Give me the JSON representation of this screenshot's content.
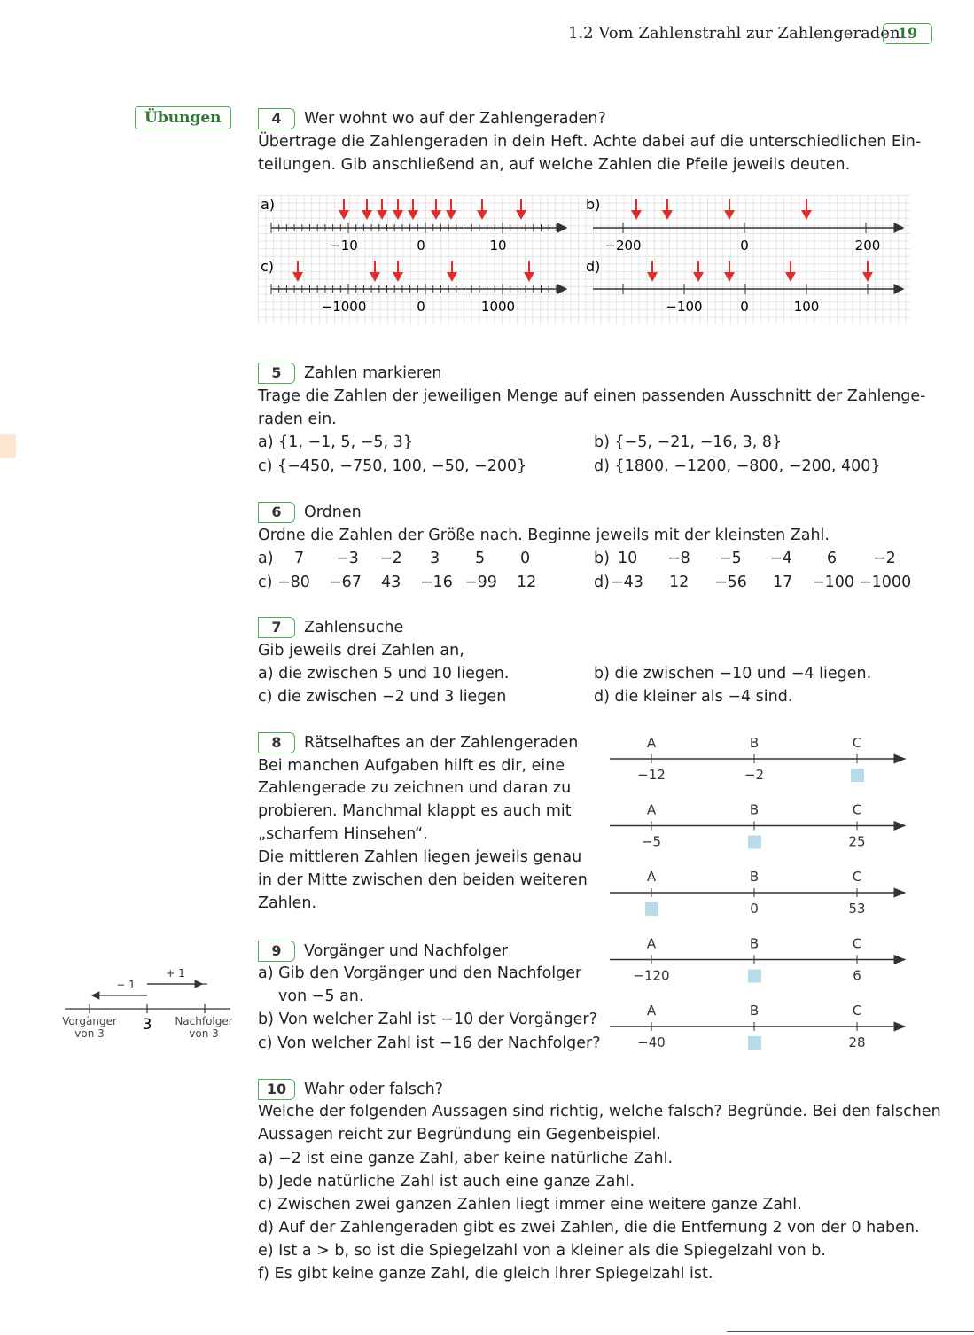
{
  "header": {
    "chapter": "1.2  Vom Zahlenstrahl zur Zahlengeraden",
    "page": "19"
  },
  "sidebar": {
    "label": "Übungen"
  },
  "ex4": {
    "num": "4",
    "title": "Wer wohnt wo auf der Zahlengeraden?",
    "lines": [
      "Übertrage die Zahlengeraden in dein Heft. Achte dabei auf die unterschiedlichen Ein-",
      "teilungen. Gib anschließend an, auf welche Zahlen die Pfeile jeweils deuten."
    ],
    "diagrams": {
      "a": {
        "label": "a)",
        "ticks": [
          "−10",
          "0",
          "10"
        ]
      },
      "b": {
        "label": "b)",
        "ticks": [
          "−200",
          "0",
          "200"
        ]
      },
      "c": {
        "label": "c)",
        "ticks": [
          "−1000",
          "0",
          "1000"
        ]
      },
      "d": {
        "label": "d)",
        "ticks": [
          "−100",
          "0",
          "100"
        ]
      }
    }
  },
  "ex5": {
    "num": "5",
    "title": "Zahlen markieren",
    "lines": [
      "Trage die Zahlen der jeweiligen Menge auf einen passenden Ausschnitt der Zahlenge-",
      "raden ein."
    ],
    "a": "a) {1, −1, 5, −5, 3}",
    "b": "b) {−5, −21, −16, 3, 8}",
    "c": "c) {−450, −750, 100, −50, −200}",
    "d": "d) {1800, −1200, −800, −200, 400}"
  },
  "ex6": {
    "num": "6",
    "title": "Ordnen",
    "intro": "Ordne die Zahlen der Größe nach. Beginne jeweils mit der kleinsten Zahl.",
    "a": {
      "label": "a)",
      "values": [
        "7",
        "−3",
        "−2",
        "3",
        "5",
        "0"
      ]
    },
    "b": {
      "label": "b)",
      "values": [
        "10",
        "−8",
        "−5",
        "−4",
        "6",
        "−2"
      ]
    },
    "c": {
      "label": "c)",
      "values": [
        "−80",
        "−67",
        "43",
        "−16",
        "−99",
        "12"
      ]
    },
    "d": {
      "label": "d)",
      "values": [
        "−43",
        "12",
        "−56",
        "17",
        "−100",
        "−1000"
      ]
    }
  },
  "ex7": {
    "num": "7",
    "title": "Zahlensuche",
    "intro": "Gib jeweils drei Zahlen an,",
    "a": "a) die zwischen 5 und 10 liegen.",
    "b": "b) die zwischen −10  und −4 liegen.",
    "c": "c) die zwischen −2 und 3 liegen",
    "d": "d) die kleiner als −4 sind."
  },
  "ex8": {
    "num": "8",
    "title": "Rätselhaftes an der Zahlengeraden",
    "lines": [
      "Bei manchen Aufgaben hilft es dir, eine",
      "Zahlengerade zu zeichnen und daran zu",
      "probieren. Manchmal klappt es auch mit",
      "„scharfem Hinsehen“.",
      "Die mittleren Zahlen liegen jeweils genau",
      "in der Mitte zwischen den beiden weiteren",
      "Zahlen."
    ]
  },
  "riddles": {
    "letters": [
      "A",
      "B",
      "C"
    ],
    "rows": [
      {
        "A": "−12",
        "B": "−2",
        "C": ""
      },
      {
        "A": "−5",
        "B": "",
        "C": "25"
      },
      {
        "A": "",
        "B": "0",
        "C": "53"
      },
      {
        "A": "−120",
        "B": "",
        "C": "6"
      },
      {
        "A": "−40",
        "B": "",
        "C": "28"
      }
    ]
  },
  "ex9": {
    "num": "9",
    "title": "Vorgänger und Nachfolger",
    "a1": "a) Gib den Vorgänger und den Nachfolger",
    "a2": "von −5 an.",
    "b": "b) Von welcher Zahl ist −10 der Vorgänger?",
    "c": "c) Von welcher Zahl ist −16 der Nachfolger?"
  },
  "fig9": {
    "minus": "− 1",
    "plus": "+ 1",
    "center": "3",
    "left1": "Vorgänger",
    "left2": "von 3",
    "right1": "Nachfolger",
    "right2": "von 3"
  },
  "ex10": {
    "num": "10",
    "title": "Wahr oder falsch?",
    "lines": [
      "Welche der folgenden Aussagen sind richtig, welche falsch? Begründe. Bei den falschen",
      "Aussagen reicht zur Begründung ein Gegenbeispiel."
    ],
    "items": [
      "a) −2 ist eine ganze Zahl, aber keine natürliche Zahl.",
      "b) Jede natürliche Zahl ist auch eine ganze Zahl.",
      "c) Zwischen zwei ganzen Zahlen liegt immer eine weitere ganze Zahl.",
      "d) Auf der Zahlengeraden gibt es zwei Zahlen, die die Entfernung 2 von der 0 haben.",
      "e) Ist a > b, so ist die Spiegelzahl von a kleiner als die Spiegelzahl von b.",
      "f) Es gibt keine ganze Zahl, die gleich ihrer Spiegelzahl ist."
    ]
  },
  "colors": {
    "green": "#4fae5a",
    "arrow": "#e32b2b",
    "box": "#b7dbe9"
  }
}
